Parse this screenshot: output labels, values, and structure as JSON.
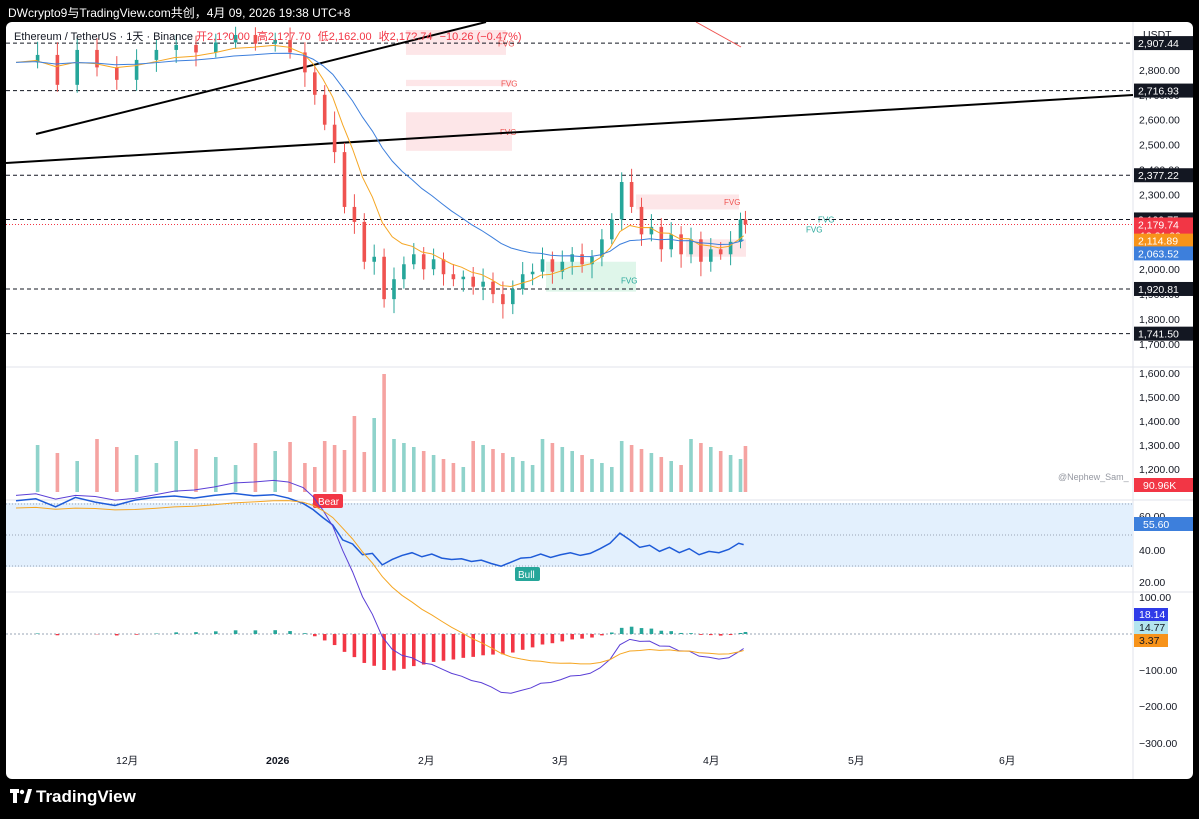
{
  "header": {
    "title": "DWcrypto9与TradingView.com共创，4月 09, 2026 19:38 UTC+8"
  },
  "legend": {
    "symbol": "Ethereum / TetherUS · 1天 · Binance",
    "open": "开2,1?0.00",
    "high": "高2,1?7.70",
    "low": "低2,162.00",
    "close": "收2,17?.74",
    "change": "−10.26 (−0.47%)"
  },
  "branding": {
    "name": "TradingView"
  },
  "watermark": "@Nephew_Sam_",
  "currency": "USDT",
  "colors": {
    "up": "#26a69a",
    "down": "#ef5350",
    "ema_fast": "#f5a623",
    "ema_slow": "#3d7fdc",
    "rsi": "#1e5bd8",
    "macd": "#5b3fd6",
    "signal": "#f5a623"
  },
  "chart_data": {
    "type": "candlestick",
    "x_ticks": [
      "12月",
      "2026",
      "2月",
      "3月",
      "4月",
      "5月",
      "6月"
    ],
    "price_axis": {
      "ticks": [
        "2,800.00",
        "2,700.00",
        "2,600.00",
        "2,500.00",
        "2,400.00",
        "2,300.00",
        "2,200.00",
        "2,100.00",
        "2,000.00",
        "1,900.00",
        "1,800.00",
        "1,700.00"
      ],
      "ylim": [
        1700,
        2960
      ]
    },
    "levels": [
      {
        "label": "2,907.44",
        "value": 2907.44
      },
      {
        "label": "2,716.93",
        "value": 2716.93
      },
      {
        "label": "2,377.22",
        "value": 2377.22
      },
      {
        "label": "2,199.75",
        "value": 2199.75
      },
      {
        "label": "1,920.81",
        "value": 1920.81
      },
      {
        "label": "1,741.50",
        "value": 1741.5
      }
    ],
    "price_badges": [
      {
        "label": "2,179.74",
        "sub": "12:21:20",
        "value": 2179.74,
        "color": "#f23645"
      },
      {
        "label": "2,114.89",
        "value": 2114.89,
        "color": "#f7931a"
      },
      {
        "label": "2,063.52",
        "value": 2063.52,
        "color": "#3d7fdc"
      }
    ],
    "fvg_labels": [
      "FVG",
      "FVG",
      "FVG",
      "FVG",
      "FVG",
      "FVG",
      "FVG"
    ],
    "close_path": [
      [
        0,
        2830
      ],
      [
        4,
        2860
      ],
      [
        8,
        2740
      ],
      [
        12,
        2880
      ],
      [
        16,
        2810
      ],
      [
        20,
        2760
      ],
      [
        24,
        2840
      ],
      [
        28,
        2880
      ],
      [
        32,
        2900
      ],
      [
        36,
        2870
      ],
      [
        40,
        2910
      ],
      [
        44,
        2940
      ],
      [
        48,
        2905
      ],
      [
        52,
        2920
      ],
      [
        55,
        2870
      ],
      [
        58,
        2790
      ],
      [
        60,
        2700
      ],
      [
        62,
        2580
      ],
      [
        64,
        2470
      ],
      [
        66,
        2250
      ],
      [
        68,
        2190
      ],
      [
        70,
        2030
      ],
      [
        72,
        2050
      ],
      [
        74,
        1880
      ],
      [
        76,
        1960
      ],
      [
        78,
        2020
      ],
      [
        80,
        2060
      ],
      [
        82,
        2000
      ],
      [
        84,
        2040
      ],
      [
        86,
        1980
      ],
      [
        88,
        1960
      ],
      [
        90,
        1970
      ],
      [
        92,
        1930
      ],
      [
        94,
        1950
      ],
      [
        96,
        1900
      ],
      [
        98,
        1860
      ],
      [
        100,
        1920
      ],
      [
        102,
        1980
      ],
      [
        104,
        1990
      ],
      [
        106,
        2040
      ],
      [
        108,
        1990
      ],
      [
        110,
        2030
      ],
      [
        112,
        2060
      ],
      [
        114,
        2020
      ],
      [
        116,
        2050
      ],
      [
        118,
        2120
      ],
      [
        120,
        2200
      ],
      [
        122,
        2350
      ],
      [
        124,
        2250
      ],
      [
        126,
        2140
      ],
      [
        128,
        2170
      ],
      [
        130,
        2080
      ],
      [
        132,
        2140
      ],
      [
        134,
        2060
      ],
      [
        136,
        2120
      ],
      [
        138,
        2030
      ],
      [
        140,
        2080
      ],
      [
        142,
        2060
      ],
      [
        144,
        2110
      ],
      [
        146,
        2200
      ],
      [
        147,
        2180
      ]
    ],
    "volume_ticks": [
      "1,600.00",
      "1,500.00",
      "1,400.00",
      "1,300.00",
      "1,200.00"
    ],
    "volume_last": "90.96K",
    "rsi": {
      "ticks": [
        "60.00",
        "40.00",
        "20.00"
      ],
      "value": "55.60",
      "labels": [
        "Bear",
        "Bull"
      ]
    },
    "macd": {
      "ticks": [
        "100.00",
        "−100.00",
        "−200.00",
        "−300.00"
      ],
      "values": [
        "18.14",
        "14.77",
        "3.37"
      ]
    }
  }
}
